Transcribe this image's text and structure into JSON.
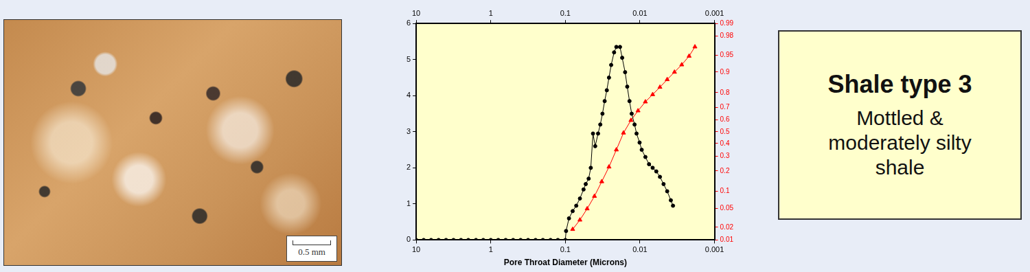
{
  "chart_data": {
    "type": "line",
    "x_label": "Pore Throat Diameter (Microns)",
    "log": "x",
    "grid": false,
    "xlim": [
      10,
      0.001
    ],
    "xticks": [
      10,
      1,
      0.1,
      0.01,
      0.001
    ],
    "ylim": [
      0,
      6
    ],
    "yticks": [
      0,
      1,
      2,
      3,
      4,
      5,
      6
    ],
    "y2lim": [
      0.01,
      0.99
    ],
    "y2ticks": [
      0.01,
      0.02,
      0.05,
      0.1,
      0.2,
      0.3,
      0.4,
      0.5,
      0.6,
      0.7,
      0.8,
      0.9,
      0.95,
      0.98,
      0.99
    ],
    "series": [
      {
        "color": "#000000",
        "marker": "circle",
        "line_style": "solid",
        "x": [
          10,
          7.94,
          6.31,
          5.01,
          3.98,
          3.16,
          2.51,
          2,
          1.58,
          1.26,
          1,
          0.794,
          0.631,
          0.501,
          0.398,
          0.316,
          0.251,
          0.2,
          0.158,
          0.126,
          0.1,
          0.0978,
          0.0894,
          0.0798,
          0.0714,
          0.0638,
          0.057,
          0.0533,
          0.0487,
          0.0456,
          0.0426,
          0.0398,
          0.0364,
          0.034,
          0.0318,
          0.0297,
          0.0278,
          0.026,
          0.0243,
          0.0222,
          0.0207,
          0.0185,
          0.0173,
          0.0158,
          0.0148,
          0.0138,
          0.0129,
          0.0118,
          0.0111,
          0.0101,
          0.00946,
          0.00845,
          0.00755,
          0.00675,
          0.00603,
          0.00539,
          0.00482,
          0.00431,
          0.00385,
          0.0036
        ],
        "values": [
          0,
          0,
          0,
          0,
          0,
          0,
          0,
          0,
          0,
          0,
          0,
          0,
          0,
          0,
          0,
          0,
          0,
          0,
          0,
          0,
          0,
          0.25,
          0.6,
          0.8,
          0.95,
          1.15,
          1.4,
          1.55,
          1.7,
          2.0,
          2.95,
          2.6,
          2.95,
          3.2,
          3.5,
          3.85,
          4.15,
          4.5,
          4.85,
          5.2,
          5.35,
          5.35,
          5.05,
          4.65,
          4.25,
          3.85,
          3.5,
          3.2,
          2.95,
          2.7,
          2.5,
          2.3,
          2.1,
          2.0,
          1.9,
          1.75,
          1.55,
          1.35,
          1.1,
          0.95
        ]
      },
      {
        "color": "#ff0000",
        "marker": "triangle",
        "line_style": "solid",
        "axis": "y2",
        "x": [
          0.0798,
          0.0638,
          0.051,
          0.0407,
          0.0325,
          0.026,
          0.0207,
          0.0166,
          0.0132,
          0.0106,
          0.00845,
          0.00675,
          0.00539,
          0.00431,
          0.00344,
          0.00275,
          0.00219,
          0.00183
        ],
        "values": [
          0.018,
          0.029,
          0.049,
          0.083,
          0.142,
          0.225,
          0.349,
          0.49,
          0.597,
          0.674,
          0.74,
          0.788,
          0.831,
          0.869,
          0.9,
          0.925,
          0.948,
          0.966
        ]
      }
    ]
  },
  "image": {
    "scale_bar": "0.5 mm"
  },
  "caption": {
    "title": "Shale type 3",
    "text": "Mottled & moderately silty shale"
  }
}
